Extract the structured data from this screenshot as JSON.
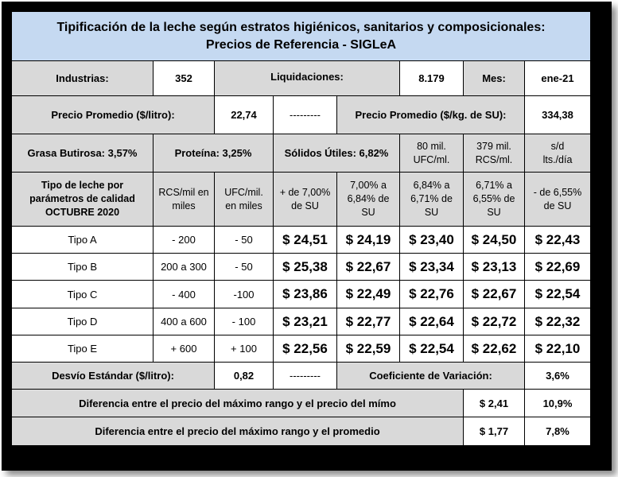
{
  "title": {
    "line1": "Tipificación de la leche según estratos higiénicos, sanitarios y composicionales:",
    "line2": "Precios de Referencia - SIGLeA"
  },
  "info": {
    "industrias_label": "Industrias:",
    "industrias_value": "352",
    "liquidaciones_label": "Liquidaciones:",
    "liquidaciones_value": "8.179",
    "mes_label": "Mes:",
    "mes_value": "ene-21"
  },
  "promedio": {
    "litro_label": "Precio Promedio ($/litro):",
    "litro_value": "22,74",
    "dashes": "---------",
    "kg_label": "Precio Promedio ($/kg. de SU):",
    "kg_value": "334,38"
  },
  "composicion": {
    "grasa": "Grasa Butirosa: 3,57%",
    "proteina": "Proteína: 3,25%",
    "solidos": "Sólidos Útiles: 6,82%",
    "ufc_line1": "80 mil.",
    "ufc_line2": "UFC/ml.",
    "rcs_line1": "379 mil.",
    "rcs_line2": "RCS/ml.",
    "sd_line1": "s/d",
    "sd_line2": "lts./día"
  },
  "header": {
    "tipo_line1": "Tipo de leche por",
    "tipo_line2": "parámetros de calidad",
    "tipo_line3": "OCTUBRE 2020",
    "rcs_line1": "RCS/mil en",
    "rcs_line2": "miles",
    "ufc_line1": "UFC/mil.",
    "ufc_line2": "en miles",
    "c1_line1": "+ de 7,00%",
    "c1_line2": "de SU",
    "c2_line1": "7,00% a",
    "c2_line2": "6,84% de",
    "c2_line3": "SU",
    "c3_line1": "6,84% a",
    "c3_line2": "6,71% de",
    "c3_line3": "SU",
    "c4_line1": "6,71% a",
    "c4_line2": "6,55% de",
    "c4_line3": "SU",
    "c5_line1": "- de 6,55%",
    "c5_line2": "de SU"
  },
  "rows": [
    {
      "tipo": "Tipo A",
      "rcs": "- 200",
      "ufc": "- 50",
      "p1": "$ 24,51",
      "p2": "$ 24,19",
      "p3": "$ 23,40",
      "p4": "$ 24,50",
      "p5": "$ 22,43"
    },
    {
      "tipo": "Tipo B",
      "rcs": "200 a 300",
      "ufc": "- 50",
      "p1": "$ 25,38",
      "p2": "$ 22,67",
      "p3": "$ 23,34",
      "p4": "$ 23,13",
      "p5": "$ 22,69"
    },
    {
      "tipo": "Tipo C",
      "rcs": "- 400",
      "ufc": "-100",
      "p1": "$ 23,86",
      "p2": "$ 22,49",
      "p3": "$ 22,76",
      "p4": "$ 22,67",
      "p5": "$ 22,54"
    },
    {
      "tipo": "Tipo D",
      "rcs": "400 a 600",
      "ufc": "- 100",
      "p1": "$ 23,21",
      "p2": "$ 22,77",
      "p3": "$ 22,64",
      "p4": "$ 22,72",
      "p5": "$ 22,32"
    },
    {
      "tipo": "Tipo E",
      "rcs": "+ 600",
      "ufc": "+ 100",
      "p1": "$ 22,56",
      "p2": "$ 22,59",
      "p3": "$ 22,54",
      "p4": "$ 22,62",
      "p5": "$ 22,10"
    }
  ],
  "desvio": {
    "label": "Desvío Estándar ($/litro):",
    "value": "0,82",
    "dashes": "---------",
    "cv_label": "Coeficiente de Variación:",
    "cv_value": "3,6%"
  },
  "diferencia1": {
    "label": "Diferencia entre el precio del máximo rango y el precio del mímo",
    "amount": "$ 2,41",
    "pct": "10,9%"
  },
  "diferencia2": {
    "label": "Diferencia entre el precio del máximo rango y el promedio",
    "amount": "$ 1,77",
    "pct": "7,8%"
  }
}
